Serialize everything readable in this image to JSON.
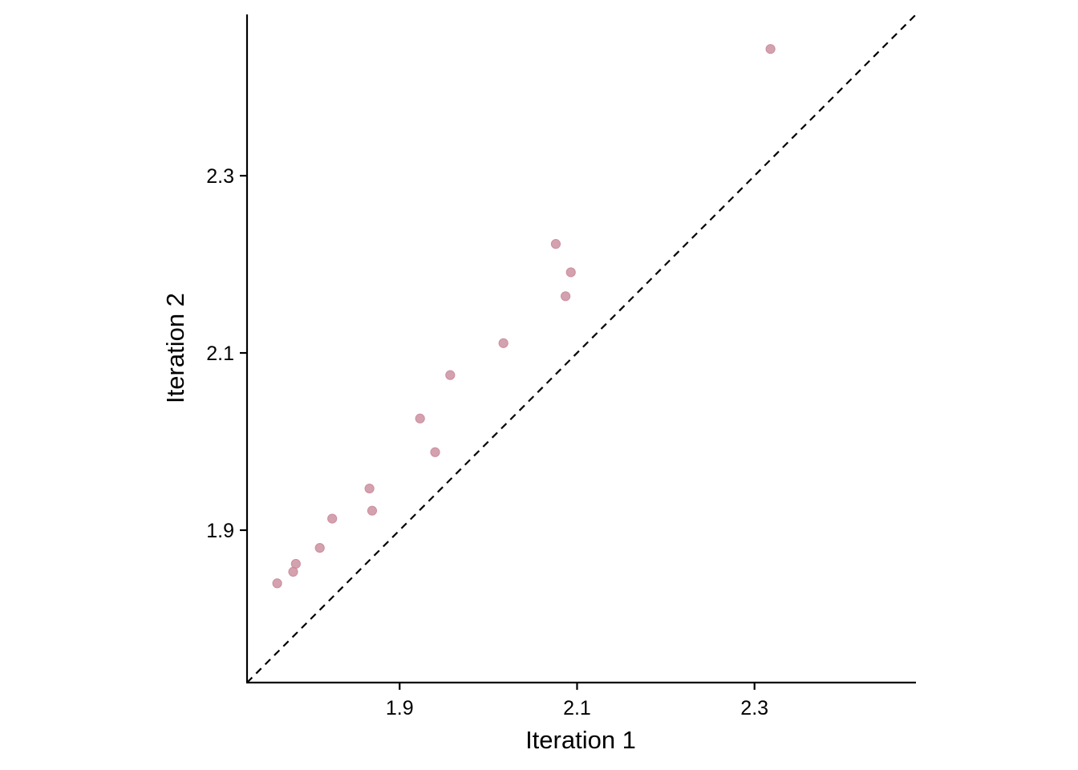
{
  "chart_data": {
    "type": "scatter",
    "title": "",
    "xlabel": "Iteration 1",
    "ylabel": "Iteration 2",
    "xlim": [
      1.728,
      2.482
    ],
    "ylim": [
      1.728,
      2.482
    ],
    "x_ticks": [
      1.9,
      2.1,
      2.3
    ],
    "y_ticks": [
      1.9,
      2.1,
      2.3
    ],
    "x_tick_labels": [
      "1.9",
      "2.1",
      "2.3"
    ],
    "y_tick_labels": [
      "1.9",
      "2.1",
      "2.3"
    ],
    "grid": false,
    "legend": "none",
    "reference_line": {
      "type": "identity",
      "style": "dashed",
      "color": "#000000"
    },
    "point_color": "#c98a9b",
    "series": [
      {
        "x": [
          1.762,
          1.78,
          1.783,
          1.81,
          1.824,
          1.866,
          1.869,
          1.923,
          1.94,
          1.957,
          2.017,
          2.076,
          2.087,
          2.093,
          2.318
        ],
        "y": [
          1.84,
          1.853,
          1.862,
          1.88,
          1.913,
          1.947,
          1.922,
          2.026,
          1.988,
          2.075,
          2.111,
          2.223,
          2.164,
          2.191,
          2.443
        ]
      }
    ]
  }
}
